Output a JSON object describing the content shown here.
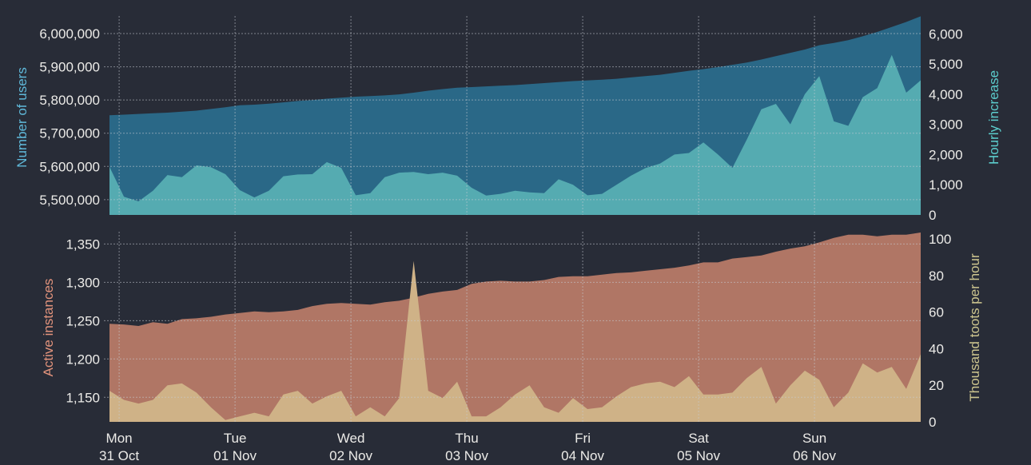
{
  "colors": {
    "background": "#282c37",
    "users_fill": "#2a6887",
    "hourly_fill": "#55abb1",
    "instances_fill": "#b07665",
    "toots_fill": "#cfb287",
    "users_label": "#5fb8d9",
    "hourly_label": "#5ccdcd",
    "instances_label": "#e2937c",
    "toots_label": "#cdc58f",
    "tick_text": "#ecebe8"
  },
  "chart_data": [
    {
      "type": "area",
      "panel": "top",
      "grid": true,
      "x": [
        "30 Oct 22:00",
        "31 Oct 01:00",
        "31 Oct 04:00",
        "31 Oct 07:00",
        "31 Oct 10:00",
        "31 Oct 13:00",
        "31 Oct 16:00",
        "31 Oct 19:00",
        "31 Oct 22:00",
        "01 Nov 01:00",
        "01 Nov 04:00",
        "01 Nov 07:00",
        "01 Nov 10:00",
        "01 Nov 13:00",
        "01 Nov 16:00",
        "01 Nov 19:00",
        "01 Nov 22:00",
        "02 Nov 01:00",
        "02 Nov 04:00",
        "02 Nov 07:00",
        "02 Nov 10:00",
        "02 Nov 13:00",
        "02 Nov 16:00",
        "02 Nov 19:00",
        "02 Nov 22:00",
        "03 Nov 01:00",
        "03 Nov 04:00",
        "03 Nov 07:00",
        "03 Nov 10:00",
        "03 Nov 13:00",
        "03 Nov 16:00",
        "03 Nov 19:00",
        "03 Nov 22:00",
        "04 Nov 01:00",
        "04 Nov 04:00",
        "04 Nov 07:00",
        "04 Nov 10:00",
        "04 Nov 13:00",
        "04 Nov 16:00",
        "04 Nov 19:00",
        "04 Nov 22:00",
        "05 Nov 01:00",
        "05 Nov 04:00",
        "05 Nov 07:00",
        "05 Nov 10:00",
        "05 Nov 13:00",
        "05 Nov 16:00",
        "05 Nov 19:00",
        "05 Nov 22:00",
        "06 Nov 01:00",
        "06 Nov 04:00",
        "06 Nov 07:00",
        "06 Nov 10:00",
        "06 Nov 13:00",
        "06 Nov 16:00",
        "06 Nov 19:00",
        "06 Nov 22:00"
      ],
      "x_ticks": [
        {
          "day": "Mon",
          "date": "31 Oct"
        },
        {
          "day": "Tue",
          "date": "01 Nov"
        },
        {
          "day": "Wed",
          "date": "02 Nov"
        },
        {
          "day": "Thu",
          "date": "03 Nov"
        },
        {
          "day": "Fri",
          "date": "04 Nov"
        },
        {
          "day": "Sat",
          "date": "05 Nov"
        },
        {
          "day": "Sun",
          "date": "06 Nov"
        }
      ],
      "y_left": {
        "label": "Number of users",
        "ylim": [
          5454000,
          6053000
        ],
        "ticks": [
          5500000,
          5600000,
          5700000,
          5800000,
          5900000,
          6000000
        ],
        "tick_labels": [
          "5,500,000",
          "5,600,000",
          "5,700,000",
          "5,800,000",
          "5,900,000",
          "6,000,000"
        ]
      },
      "y_right": {
        "label": "Hourly increase",
        "ylim": [
          0,
          6590
        ],
        "ticks": [
          0,
          1000,
          2000,
          3000,
          4000,
          5000,
          6000
        ],
        "tick_labels": [
          "0",
          "1,000",
          "2,000",
          "3,000",
          "4,000",
          "5,000",
          "6,000"
        ]
      },
      "series": [
        {
          "axis": "left",
          "values": [
            5754000,
            5756000,
            5758000,
            5760000,
            5762000,
            5765000,
            5768000,
            5773000,
            5778000,
            5784000,
            5786000,
            5789000,
            5793000,
            5797000,
            5800000,
            5804000,
            5807000,
            5810000,
            5812000,
            5814000,
            5817000,
            5822000,
            5828000,
            5833000,
            5837000,
            5839000,
            5841000,
            5843000,
            5845000,
            5848000,
            5851000,
            5854000,
            5857000,
            5859000,
            5861000,
            5864000,
            5868000,
            5872000,
            5876000,
            5882000,
            5888000,
            5893000,
            5899000,
            5906000,
            5913000,
            5922000,
            5932000,
            5942000,
            5952000,
            5965000,
            5972000,
            5980000,
            5992000,
            6005000,
            6020000,
            6035000,
            6052000
          ]
        },
        {
          "axis": "right",
          "values": [
            1590,
            600,
            450,
            800,
            1320,
            1250,
            1640,
            1580,
            1350,
            820,
            580,
            800,
            1280,
            1340,
            1350,
            1750,
            1560,
            650,
            720,
            1250,
            1400,
            1420,
            1350,
            1400,
            1300,
            900,
            640,
            700,
            800,
            750,
            720,
            1180,
            1000,
            650,
            700,
            1000,
            1300,
            1550,
            1700,
            2000,
            2050,
            2400,
            2000,
            1560,
            2500,
            3500,
            3680,
            3000,
            4000,
            4600,
            3100,
            2950,
            3900,
            4200,
            5300,
            4050,
            4460
          ]
        }
      ]
    },
    {
      "type": "area",
      "panel": "bottom",
      "grid": true,
      "y_left": {
        "label": "Active instances",
        "ylim": [
          1118,
          1366
        ],
        "ticks": [
          1150,
          1200,
          1250,
          1300,
          1350
        ],
        "tick_labels": [
          "1,150",
          "1,200",
          "1,250",
          "1,300",
          "1,350"
        ]
      },
      "y_right": {
        "label": "Thousand toots per hour",
        "ylim": [
          0,
          104
        ],
        "ticks": [
          0,
          20,
          40,
          60,
          80,
          100
        ],
        "tick_labels": [
          "0",
          "20",
          "40",
          "60",
          "80",
          "100"
        ]
      },
      "series": [
        {
          "axis": "left",
          "values": [
            1246,
            1245,
            1243,
            1248,
            1246,
            1252,
            1253,
            1255,
            1258,
            1260,
            1262,
            1261,
            1262,
            1264,
            1269,
            1272,
            1273,
            1272,
            1271,
            1274,
            1276,
            1280,
            1285,
            1288,
            1290,
            1298,
            1301,
            1302,
            1301,
            1301,
            1303,
            1307,
            1308,
            1308,
            1310,
            1312,
            1313,
            1315,
            1317,
            1319,
            1322,
            1326,
            1326,
            1331,
            1333,
            1335,
            1340,
            1344,
            1347,
            1352,
            1358,
            1362,
            1362,
            1360,
            1362,
            1362,
            1365
          ]
        },
        {
          "axis": "right",
          "values": [
            17,
            12,
            10,
            12,
            20,
            21,
            16,
            8,
            1,
            3,
            5,
            3,
            15,
            17,
            10,
            14,
            17,
            3,
            8,
            3,
            13,
            88,
            17,
            13,
            22,
            3,
            3,
            8,
            15,
            20,
            8,
            5,
            13,
            7,
            8,
            14,
            19,
            21,
            22,
            19,
            25,
            15,
            15,
            16,
            24,
            30,
            10,
            20,
            28,
            23,
            8,
            16,
            32,
            27,
            30,
            18,
            37
          ]
        }
      ]
    }
  ]
}
